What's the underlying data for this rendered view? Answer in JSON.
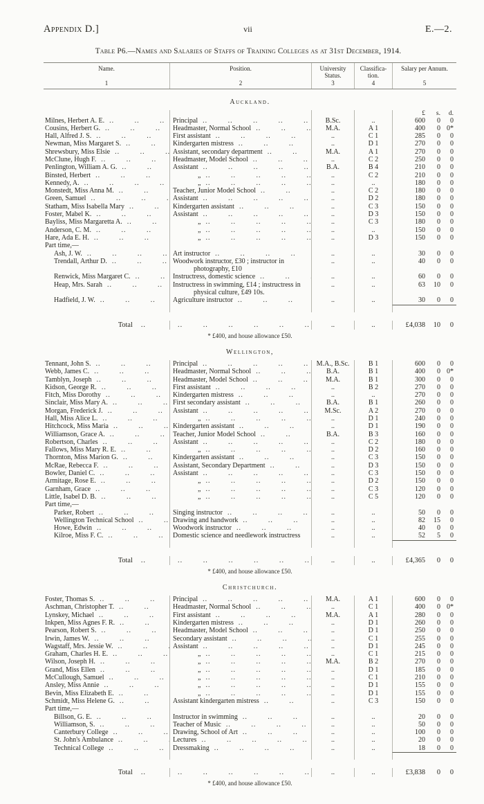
{
  "page": {
    "appendix": "Appendix D.]",
    "page_num": "vii",
    "doc_ref": "E.—2.",
    "title": "Table P6.—Names and Salaries of Staffs of Training Colleges as at 31st December, 1914."
  },
  "colors": {
    "paper": "#fbfbf9",
    "ink": "#27261f",
    "rule": "#84847c",
    "divider": "#b6b6ae"
  },
  "ui": {
    "dots": "..",
    "leader": ".. .. .. .. .. .. .. .. .. .. .. .. .. .. .. .. .. .."
  },
  "table": {
    "columns": [
      {
        "label": "Name.",
        "num": "1"
      },
      {
        "label": "Position.",
        "num": "2"
      },
      {
        "label": "University Status.",
        "num": "3"
      },
      {
        "label": "Classifica-tion.",
        "num": "4"
      },
      {
        "label": "Salary per Annum.",
        "num": "5"
      }
    ],
    "currency": [
      "£",
      "s.",
      "d."
    ],
    "sections": [
      {
        "name": "Auckland.",
        "currency_header": true,
        "rows": [
          {
            "name": "Milnes, Herbert A. E.",
            "pos": "Principal",
            "univ": "B.Sc.",
            "cls": "..",
            "sal": [
              "600",
              "0",
              "0"
            ]
          },
          {
            "name": "Cousins, Herbert G.",
            "pos": "Headmaster, Normal School",
            "univ": "M.A.",
            "cls": "A 1",
            "sal": [
              "400",
              "0",
              "0*"
            ]
          },
          {
            "name": "Hall, Alfred J. S.",
            "pos": "First assistant",
            "univ": "..",
            "cls": "C 1",
            "sal": [
              "285",
              "0",
              "0"
            ]
          },
          {
            "name": "Newman, Miss Margaret S.",
            "pos": "Kindergarten mistress",
            "univ": "..",
            "cls": "D 1",
            "sal": [
              "270",
              "0",
              "0"
            ]
          },
          {
            "name": "Shrewsbury, Miss Elsie",
            "pos": "Assistant, secondary department",
            "univ": "M.A.",
            "cls": "A 1",
            "sal": [
              "270",
              "0",
              "0"
            ]
          },
          {
            "name": "McClune, Hugh F.",
            "pos": "Headmaster, Model School",
            "univ": "..",
            "cls": "C 2",
            "sal": [
              "250",
              "0",
              "0"
            ]
          },
          {
            "name": "Penlington, William A. G.",
            "pos": "Assistant",
            "univ": "B.A.",
            "cls": "B 4",
            "sal": [
              "210",
              "0",
              "0"
            ]
          },
          {
            "name": "Binsted, Herbert",
            "pos": "„",
            "univ": "..",
            "cls": "C 2",
            "sal": [
              "210",
              "0",
              "0"
            ]
          },
          {
            "name": "Kennedy, A.",
            "pos": "„",
            "univ": "..",
            "cls": "..",
            "sal": [
              "180",
              "0",
              "0"
            ]
          },
          {
            "name": "Monstedt, Miss Anna M.",
            "pos": "Teacher, Junior Model School",
            "univ": "..",
            "cls": "C 2",
            "sal": [
              "180",
              "0",
              "0"
            ]
          },
          {
            "name": "Green, Samuel",
            "pos": "Assistant",
            "univ": "..",
            "cls": "D 2",
            "sal": [
              "180",
              "0",
              "0"
            ]
          },
          {
            "name": "Statham, Miss Isabella Mary",
            "pos": "Kindergarten assistant",
            "univ": "..",
            "cls": "C 3",
            "sal": [
              "150",
              "0",
              "0"
            ]
          },
          {
            "name": "Foster, Mabel K.",
            "pos": "Assistant",
            "univ": "..",
            "cls": "D 3",
            "sal": [
              "150",
              "0",
              "0"
            ]
          },
          {
            "name": "Bayliss, Miss Margaretta A.",
            "pos": "„",
            "univ": "..",
            "cls": "C 3",
            "sal": [
              "180",
              "0",
              "0"
            ]
          },
          {
            "name": "Anderson, C. M.",
            "pos": "„",
            "univ": "..",
            "cls": "..",
            "sal": [
              "150",
              "0",
              "0"
            ]
          },
          {
            "name": "Hare, Ada E. H.",
            "pos": "„",
            "univ": "..",
            "cls": "D 3",
            "sal": [
              "150",
              "0",
              "0"
            ]
          }
        ],
        "part_time_label": "Part time,—",
        "part_rows": [
          {
            "name": "Ash, J. W.",
            "pos": "Art instructor",
            "univ": "..",
            "cls": "..",
            "sal": [
              "30",
              "0",
              "0"
            ]
          },
          {
            "name": "Trendall, Arthur D.",
            "pos": "Woodwork instructor, £30 ; instructor in photography, £10",
            "wrap": true,
            "univ": "..",
            "cls": "..",
            "sal": [
              "40",
              "0",
              "0"
            ]
          },
          {
            "name": "Renwick, Miss Margaret C.",
            "pos": "Instructress, domestic science",
            "univ": "..",
            "cls": "..",
            "sal": [
              "60",
              "0",
              "0"
            ]
          },
          {
            "name": "Heap, Mrs. Sarah",
            "pos": "Instructress in swimming, £14 ; instructress in physical culture, £49 10s.",
            "wrap": true,
            "univ": "..",
            "cls": "..",
            "sal": [
              "63",
              "10",
              "0"
            ]
          },
          {
            "name": "Hadfield, J. W.",
            "pos": "Agriculture instructor",
            "univ": "..",
            "cls": "..",
            "sal": [
              "30",
              "0",
              "0"
            ]
          }
        ],
        "total_label": "Total",
        "total": [
          "£4,038",
          "10",
          "0"
        ],
        "footnote": "* £400, and house allowance £50."
      },
      {
        "name": "Wellington,",
        "currency_header": false,
        "rows": [
          {
            "name": "Tennant, John S.",
            "pos": "Principal",
            "univ": "M.A., B.Sc.",
            "cls": "B 1",
            "sal": [
              "600",
              "0",
              "0"
            ]
          },
          {
            "name": "Webb, James C.",
            "pos": "Headmaster, Normal School",
            "univ": "B.A.",
            "cls": "B 1",
            "sal": [
              "400",
              "0",
              "0*"
            ]
          },
          {
            "name": "Tamblyn, Joseph",
            "pos": "Headmaster, Model School",
            "univ": "M.A.",
            "cls": "B 1",
            "sal": [
              "300",
              "0",
              "0"
            ]
          },
          {
            "name": "Kidson, George R.",
            "pos": "First assistant",
            "univ": "..",
            "cls": "B 2",
            "sal": [
              "270",
              "0",
              "0"
            ]
          },
          {
            "name": "Fitch, Miss Dorothy",
            "pos": "Kindergarten mistress",
            "univ": "..",
            "cls": "..",
            "sal": [
              "270",
              "0",
              "0"
            ]
          },
          {
            "name": "Sinclair, Miss Mary A.",
            "pos": "First secondary assistant",
            "univ": "B.A.",
            "cls": "B 1",
            "sal": [
              "260",
              "0",
              "0"
            ]
          },
          {
            "name": "Morgan, Frederick J.",
            "pos": "Assistant",
            "univ": "M.Sc.",
            "cls": "A 2",
            "sal": [
              "270",
              "0",
              "0"
            ]
          },
          {
            "name": "Hall, Miss Alice L.",
            "pos": "„",
            "univ": "..",
            "cls": "D 1",
            "sal": [
              "240",
              "0",
              "0"
            ]
          },
          {
            "name": "Hitchcock, Miss Maria",
            "pos": "Kindergarten assistant",
            "univ": "..",
            "cls": "D 1",
            "sal": [
              "190",
              "0",
              "0"
            ]
          },
          {
            "name": "Williamson, Grace A.",
            "pos": "Teacher, Junior Model School",
            "univ": "B.A.",
            "cls": "B 3",
            "sal": [
              "160",
              "0",
              "0"
            ]
          },
          {
            "name": "Robertson, Charles",
            "pos": "Assistant",
            "univ": "..",
            "cls": "C 2",
            "sal": [
              "180",
              "0",
              "0"
            ]
          },
          {
            "name": "Fallows, Miss Mary R. E.",
            "pos": "„",
            "univ": "..",
            "cls": "D 2",
            "sal": [
              "160",
              "0",
              "0"
            ]
          },
          {
            "name": "Thornton, Miss Marion G.",
            "pos": "Kindergarten assistant",
            "univ": "..",
            "cls": "C 3",
            "sal": [
              "150",
              "0",
              "0"
            ]
          },
          {
            "name": "McRae, Rebecca F.",
            "pos": "Assistant, Secondary Department",
            "univ": "..",
            "cls": "D 3",
            "sal": [
              "150",
              "0",
              "0"
            ]
          },
          {
            "name": "Bowler, Daniel C.",
            "pos": "Assistant",
            "univ": "..",
            "cls": "C 3",
            "sal": [
              "150",
              "0",
              "0"
            ]
          },
          {
            "name": "Armitage, Rose E.",
            "pos": "„",
            "univ": "..",
            "cls": "D 2",
            "sal": [
              "150",
              "0",
              "0"
            ]
          },
          {
            "name": "Garnham, Grace",
            "pos": "„",
            "univ": "..",
            "cls": "C 3",
            "sal": [
              "120",
              "0",
              "0"
            ]
          },
          {
            "name": "Little, Isabel D. B.",
            "pos": "„",
            "univ": "..",
            "cls": "C 5",
            "sal": [
              "120",
              "0",
              "0"
            ]
          }
        ],
        "part_time_label": "Part time,—",
        "part_rows": [
          {
            "name": "Parker, Robert",
            "pos": "Singing instructor",
            "univ": "..",
            "cls": "..",
            "sal": [
              "50",
              "0",
              "0"
            ]
          },
          {
            "name": "Wellington Technical School",
            "pos": "Drawing and handwork",
            "univ": "..",
            "cls": "..",
            "sal": [
              "82",
              "15",
              "0"
            ]
          },
          {
            "name": "Howe, Edwin",
            "pos": "Woodwork instructor",
            "univ": "..",
            "cls": "..",
            "sal": [
              "40",
              "0",
              "0"
            ]
          },
          {
            "name": "Kilroe, Miss F. C.",
            "pos": "Domestic science and needlework instructress",
            "wrap": true,
            "univ": "..",
            "cls": "..",
            "sal": [
              "52",
              "5",
              "0"
            ]
          }
        ],
        "total_label": "Total",
        "total": [
          "£4,365",
          "0",
          "0"
        ],
        "footnote": "* £400, and house allowance £50."
      },
      {
        "name": "Christchurch.",
        "currency_header": false,
        "rows": [
          {
            "name": "Foster, Thomas S.",
            "pos": "Principal",
            "univ": "M.A.",
            "cls": "A 1",
            "sal": [
              "600",
              "0",
              "0"
            ]
          },
          {
            "name": "Aschman, Christopher T.",
            "pos": "Headmaster, Normal School",
            "univ": "..",
            "cls": "C 1",
            "sal": [
              "400",
              "0",
              "0*"
            ]
          },
          {
            "name": "Lynskey, Michael",
            "pos": "First assistant",
            "univ": "M.A.",
            "cls": "A 1",
            "sal": [
              "280",
              "0",
              "0"
            ]
          },
          {
            "name": "Inkpen, Miss Agnes F. R.",
            "pos": "Kindergarten mistress",
            "univ": "..",
            "cls": "D 1",
            "sal": [
              "260",
              "0",
              "0"
            ]
          },
          {
            "name": "Pearson, Robert S.",
            "pos": "Headmaster, Model School",
            "univ": "..",
            "cls": "D 1",
            "sal": [
              "250",
              "0",
              "0"
            ]
          },
          {
            "name": "Irwin, James W.",
            "pos": "Secondary assistant",
            "univ": "..",
            "cls": "C 1",
            "sal": [
              "255",
              "0",
              "0"
            ]
          },
          {
            "name": "Wagstaff, Mrs. Jessie W.",
            "pos": "Assistant",
            "univ": "..",
            "cls": "D 1",
            "sal": [
              "245",
              "0",
              "0"
            ]
          },
          {
            "name": "Graham, Charles H. E.",
            "pos": "„",
            "univ": "..",
            "cls": "C 1",
            "sal": [
              "215",
              "0",
              "0"
            ]
          },
          {
            "name": "Wilson, Joseph H.",
            "pos": "„",
            "univ": "M.A.",
            "cls": "B 2",
            "sal": [
              "270",
              "0",
              "0"
            ]
          },
          {
            "name": "Grand, Miss Ellen",
            "pos": "„",
            "univ": "..",
            "cls": "D 1",
            "sal": [
              "185",
              "0",
              "0"
            ]
          },
          {
            "name": "McCullough, Samuel",
            "pos": "„",
            "univ": "..",
            "cls": "C 1",
            "sal": [
              "210",
              "0",
              "0"
            ]
          },
          {
            "name": "Ansley, Miss Annie",
            "pos": "„",
            "univ": "..",
            "cls": "D 1",
            "sal": [
              "155",
              "0",
              "0"
            ]
          },
          {
            "name": "Bevin, Miss Elizabeth E.",
            "pos": "„",
            "univ": "..",
            "cls": "D 1",
            "sal": [
              "155",
              "0",
              "0"
            ]
          },
          {
            "name": "Schmidt, Miss Helene G.",
            "pos": "Assistant kindergarten mistress",
            "univ": "..",
            "cls": "C 3",
            "sal": [
              "150",
              "0",
              "0"
            ]
          }
        ],
        "part_time_label": "Part time,—",
        "part_rows": [
          {
            "name": "Billson, G. E.",
            "pos": "Instructor in swimming",
            "univ": "..",
            "cls": "..",
            "sal": [
              "20",
              "0",
              "0"
            ]
          },
          {
            "name": "Williamson, S.",
            "pos": "Teacher of Music",
            "univ": "..",
            "cls": "..",
            "sal": [
              "50",
              "0",
              "0"
            ]
          },
          {
            "name": "Canterbury College",
            "pos": "Drawing, School of Art",
            "univ": "..",
            "cls": "..",
            "sal": [
              "100",
              "0",
              "0"
            ]
          },
          {
            "name": "St. John's Ambulance",
            "pos": "Lectures",
            "univ": "..",
            "cls": "..",
            "sal": [
              "20",
              "0",
              "0"
            ]
          },
          {
            "name": "Technical College",
            "pos": "Dressmaking",
            "univ": "..",
            "cls": "..",
            "sal": [
              "18",
              "0",
              "0"
            ]
          }
        ],
        "total_label": "Total",
        "total": [
          "£3,838",
          "0",
          "0"
        ],
        "footnote": "* £400, and house allowance £50."
      }
    ]
  }
}
